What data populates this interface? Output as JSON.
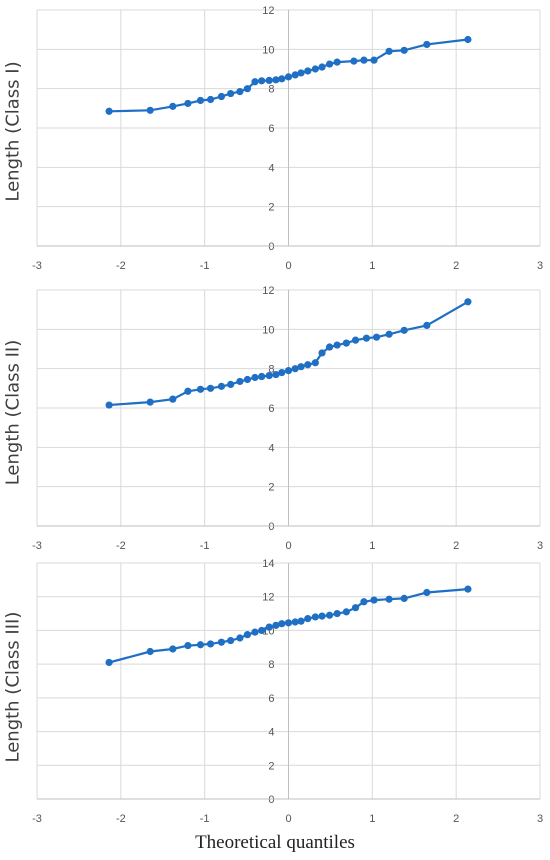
{
  "chart_data": [
    {
      "type": "line",
      "ylabel": "Length (Class I)",
      "xlim": [
        -3,
        3
      ],
      "ylim": [
        0,
        12
      ],
      "x_ticks": [
        "-3",
        "-2",
        "-1",
        "0",
        "1",
        "2",
        "3"
      ],
      "y_ticks": [
        "0",
        "2",
        "4",
        "6",
        "8",
        "10",
        "12"
      ],
      "grid": true,
      "series_color": "#1f6fc5",
      "points": [
        [
          -2.14,
          6.85
        ],
        [
          -1.65,
          6.9
        ],
        [
          -1.38,
          7.1
        ],
        [
          -1.2,
          7.25
        ],
        [
          -1.05,
          7.4
        ],
        [
          -0.93,
          7.45
        ],
        [
          -0.8,
          7.6
        ],
        [
          -0.69,
          7.75
        ],
        [
          -0.58,
          7.85
        ],
        [
          -0.49,
          8.0
        ],
        [
          -0.4,
          8.35
        ],
        [
          -0.32,
          8.4
        ],
        [
          -0.23,
          8.42
        ],
        [
          -0.15,
          8.45
        ],
        [
          -0.08,
          8.5
        ],
        [
          0.0,
          8.6
        ],
        [
          0.08,
          8.7
        ],
        [
          0.15,
          8.8
        ],
        [
          0.23,
          8.9
        ],
        [
          0.32,
          9.0
        ],
        [
          0.4,
          9.1
        ],
        [
          0.49,
          9.25
        ],
        [
          0.58,
          9.35
        ],
        [
          0.78,
          9.4
        ],
        [
          0.9,
          9.45
        ],
        [
          1.02,
          9.45
        ],
        [
          1.2,
          9.9
        ],
        [
          1.38,
          9.95
        ],
        [
          1.65,
          10.25
        ],
        [
          2.14,
          10.5
        ]
      ]
    },
    {
      "type": "line",
      "ylabel": "Length (Class II)",
      "xlim": [
        -3,
        3
      ],
      "ylim": [
        0,
        12
      ],
      "x_ticks": [
        "-3",
        "-2",
        "-1",
        "0",
        "1",
        "2",
        "3"
      ],
      "y_ticks": [
        "0",
        "2",
        "4",
        "6",
        "8",
        "10",
        "12"
      ],
      "grid": true,
      "series_color": "#1f6fc5",
      "points": [
        [
          -2.14,
          6.15
        ],
        [
          -1.65,
          6.3
        ],
        [
          -1.38,
          6.45
        ],
        [
          -1.2,
          6.85
        ],
        [
          -1.05,
          6.95
        ],
        [
          -0.93,
          7.0
        ],
        [
          -0.8,
          7.1
        ],
        [
          -0.69,
          7.2
        ],
        [
          -0.58,
          7.35
        ],
        [
          -0.49,
          7.45
        ],
        [
          -0.4,
          7.55
        ],
        [
          -0.32,
          7.6
        ],
        [
          -0.23,
          7.65
        ],
        [
          -0.15,
          7.7
        ],
        [
          -0.08,
          7.8
        ],
        [
          0.0,
          7.9
        ],
        [
          0.08,
          8.0
        ],
        [
          0.15,
          8.1
        ],
        [
          0.23,
          8.2
        ],
        [
          0.32,
          8.3
        ],
        [
          0.4,
          8.8
        ],
        [
          0.49,
          9.1
        ],
        [
          0.58,
          9.2
        ],
        [
          0.69,
          9.3
        ],
        [
          0.8,
          9.45
        ],
        [
          0.93,
          9.55
        ],
        [
          1.05,
          9.6
        ],
        [
          1.2,
          9.75
        ],
        [
          1.38,
          9.95
        ],
        [
          1.65,
          10.2
        ],
        [
          2.14,
          11.4
        ]
      ]
    },
    {
      "type": "line",
      "ylabel": "Length (Class III)",
      "xlabel": "Theoretical quantiles",
      "xlim": [
        -3,
        3
      ],
      "ylim": [
        0,
        14
      ],
      "x_ticks": [
        "-3",
        "-2",
        "-1",
        "0",
        "1",
        "2",
        "3"
      ],
      "y_ticks": [
        "0",
        "2",
        "4",
        "6",
        "8",
        "10",
        "12",
        "14"
      ],
      "grid": true,
      "series_color": "#1f6fc5",
      "points": [
        [
          -2.14,
          8.1
        ],
        [
          -1.65,
          8.75
        ],
        [
          -1.38,
          8.9
        ],
        [
          -1.2,
          9.1
        ],
        [
          -1.05,
          9.15
        ],
        [
          -0.93,
          9.2
        ],
        [
          -0.8,
          9.3
        ],
        [
          -0.69,
          9.4
        ],
        [
          -0.58,
          9.55
        ],
        [
          -0.49,
          9.75
        ],
        [
          -0.4,
          9.9
        ],
        [
          -0.32,
          10.0
        ],
        [
          -0.23,
          10.2
        ],
        [
          -0.15,
          10.3
        ],
        [
          -0.08,
          10.4
        ],
        [
          0.0,
          10.45
        ],
        [
          0.08,
          10.5
        ],
        [
          0.15,
          10.55
        ],
        [
          0.23,
          10.7
        ],
        [
          0.32,
          10.8
        ],
        [
          0.4,
          10.85
        ],
        [
          0.49,
          10.9
        ],
        [
          0.58,
          11.0
        ],
        [
          0.69,
          11.1
        ],
        [
          0.8,
          11.35
        ],
        [
          0.9,
          11.7
        ],
        [
          1.02,
          11.8
        ],
        [
          1.2,
          11.85
        ],
        [
          1.38,
          11.9
        ],
        [
          1.65,
          12.25
        ],
        [
          2.14,
          12.45
        ]
      ]
    }
  ]
}
